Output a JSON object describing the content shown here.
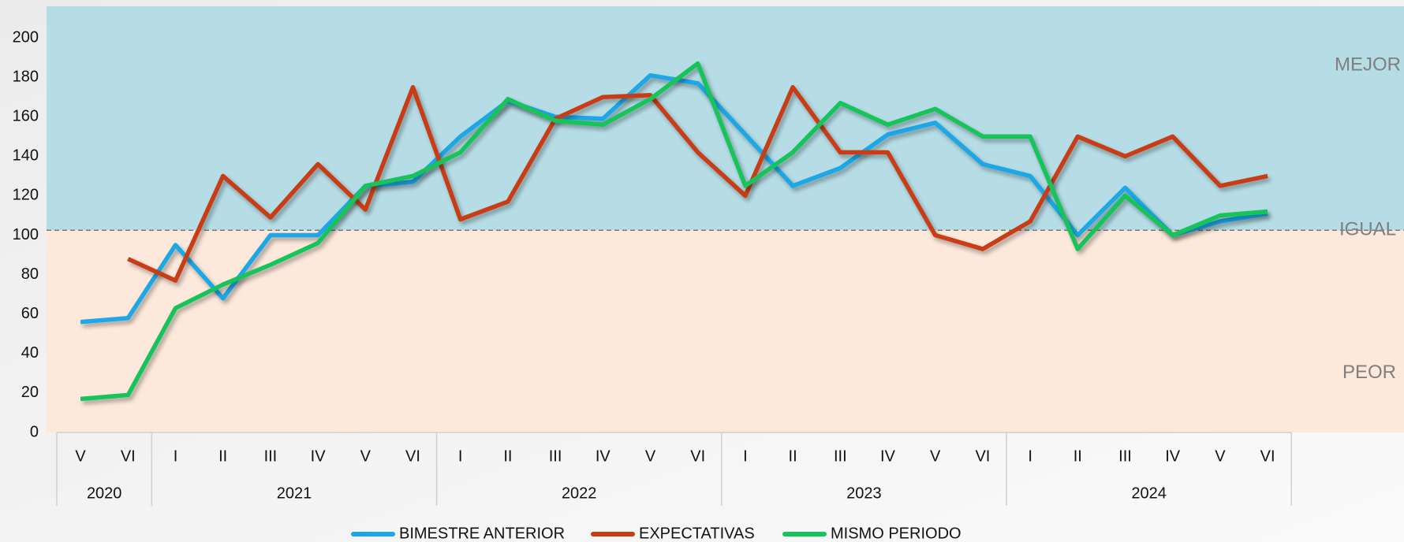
{
  "chart_data": {
    "type": "line",
    "categories": [
      "V",
      "VI",
      "I",
      "II",
      "III",
      "IV",
      "V",
      "VI",
      "I",
      "II",
      "III",
      "IV",
      "V",
      "VI",
      "I",
      "II",
      "III",
      "IV",
      "V",
      "VI",
      "I",
      "II",
      "III",
      "IV",
      "V",
      "VI"
    ],
    "groups": [
      {
        "label": "2020",
        "count": 2
      },
      {
        "label": "2021",
        "count": 6
      },
      {
        "label": "2022",
        "count": 6
      },
      {
        "label": "2023",
        "count": 6
      },
      {
        "label": "2024",
        "count": 6
      }
    ],
    "series": [
      {
        "name": "BIMESTRE ANTERIOR",
        "color": "#1aa7e6",
        "values": [
          56,
          58,
          95,
          68,
          100,
          100,
          125,
          127,
          150,
          168,
          160,
          159,
          181,
          177,
          151,
          125,
          134,
          151,
          157,
          136,
          130,
          100,
          124,
          100,
          107,
          111
        ]
      },
      {
        "name": "EXPECTATIVAS",
        "color": "#c83c12",
        "values": [
          null,
          88,
          77,
          130,
          109,
          136,
          113,
          175,
          108,
          117,
          159,
          170,
          171,
          142,
          120,
          175,
          142,
          142,
          100,
          93,
          107,
          150,
          140,
          150,
          125,
          130
        ]
      },
      {
        "name": "MISMO PERIODO",
        "color": "#12c45a",
        "values": [
          17,
          19,
          63,
          75,
          85,
          96,
          125,
          130,
          142,
          169,
          158,
          156,
          169,
          187,
          125,
          142,
          167,
          156,
          164,
          150,
          150,
          93,
          120,
          100,
          110,
          112
        ]
      }
    ],
    "ylim": [
      0,
      216
    ],
    "yticks": [
      0,
      20,
      40,
      60,
      80,
      100,
      120,
      140,
      160,
      180,
      200
    ],
    "reference_value": 102.5,
    "bands": [
      {
        "label": "MEJOR",
        "color": "#b6dde6"
      },
      {
        "label": "IGUAL"
      },
      {
        "label": "PEOR",
        "color": "#fde9dc"
      }
    ]
  }
}
